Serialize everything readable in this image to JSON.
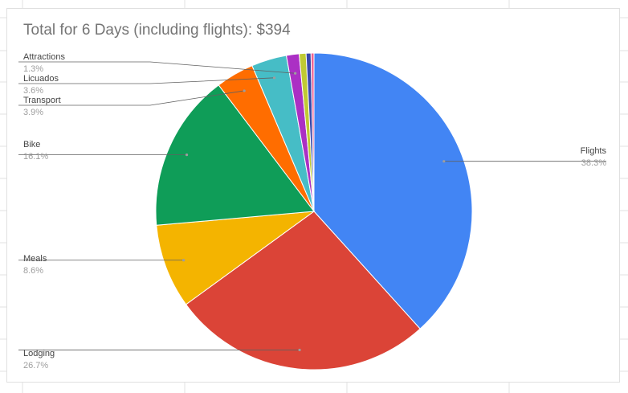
{
  "chart_data": {
    "type": "pie",
    "title": "Total for 6 Days (including flights): $394",
    "slices": [
      {
        "name": "Flights",
        "value": 38.3,
        "label": "38.3%",
        "color": "#4285F4"
      },
      {
        "name": "Lodging",
        "value": 26.7,
        "label": "26.7%",
        "color": "#DB4437"
      },
      {
        "name": "Meals",
        "value": 8.6,
        "label": "8.6%",
        "color": "#F4B400"
      },
      {
        "name": "Bike",
        "value": 16.1,
        "label": "16.1%",
        "color": "#0F9D58"
      },
      {
        "name": "Transport",
        "value": 3.9,
        "label": "3.9%",
        "color": "#FF6D00"
      },
      {
        "name": "Licuados",
        "value": 3.6,
        "label": "3.6%",
        "color": "#46BDC6"
      },
      {
        "name": "Attractions",
        "value": 1.3,
        "label": "1.3%",
        "color": "#AB30C4"
      },
      {
        "name": "",
        "value": 0.7,
        "label": "",
        "color": "#C0CA33"
      },
      {
        "name": "",
        "value": 0.5,
        "label": "",
        "color": "#3949AB"
      },
      {
        "name": "",
        "value": 0.3,
        "label": "",
        "color": "#F06292"
      }
    ],
    "legend": "labels"
  }
}
